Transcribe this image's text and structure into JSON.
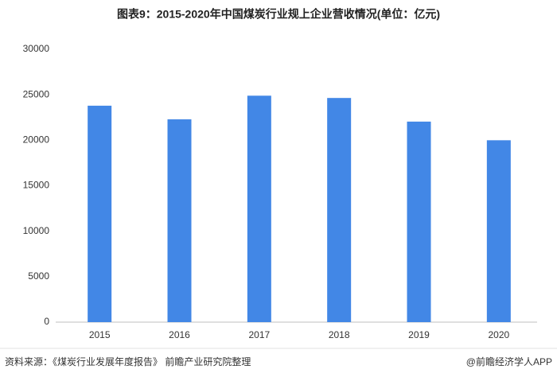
{
  "chart_data": {
    "type": "bar",
    "title": "图表9：2015-2020年中国煤炭行业规上企业营收情况(单位：亿元)",
    "categories": [
      "2015",
      "2016",
      "2017",
      "2018",
      "2019",
      "2020"
    ],
    "values": [
      23800,
      22300,
      24900,
      24650,
      22050,
      20000
    ],
    "color": "#4287e6",
    "ylim": [
      0,
      30000
    ],
    "yticks": [
      0,
      5000,
      10000,
      15000,
      20000,
      25000,
      30000
    ],
    "grid": false,
    "source": "资料来源：《煤炭行业发展年度报告》 前瞻产业研究院整理",
    "brand": "@前瞻经济学人APP"
  }
}
